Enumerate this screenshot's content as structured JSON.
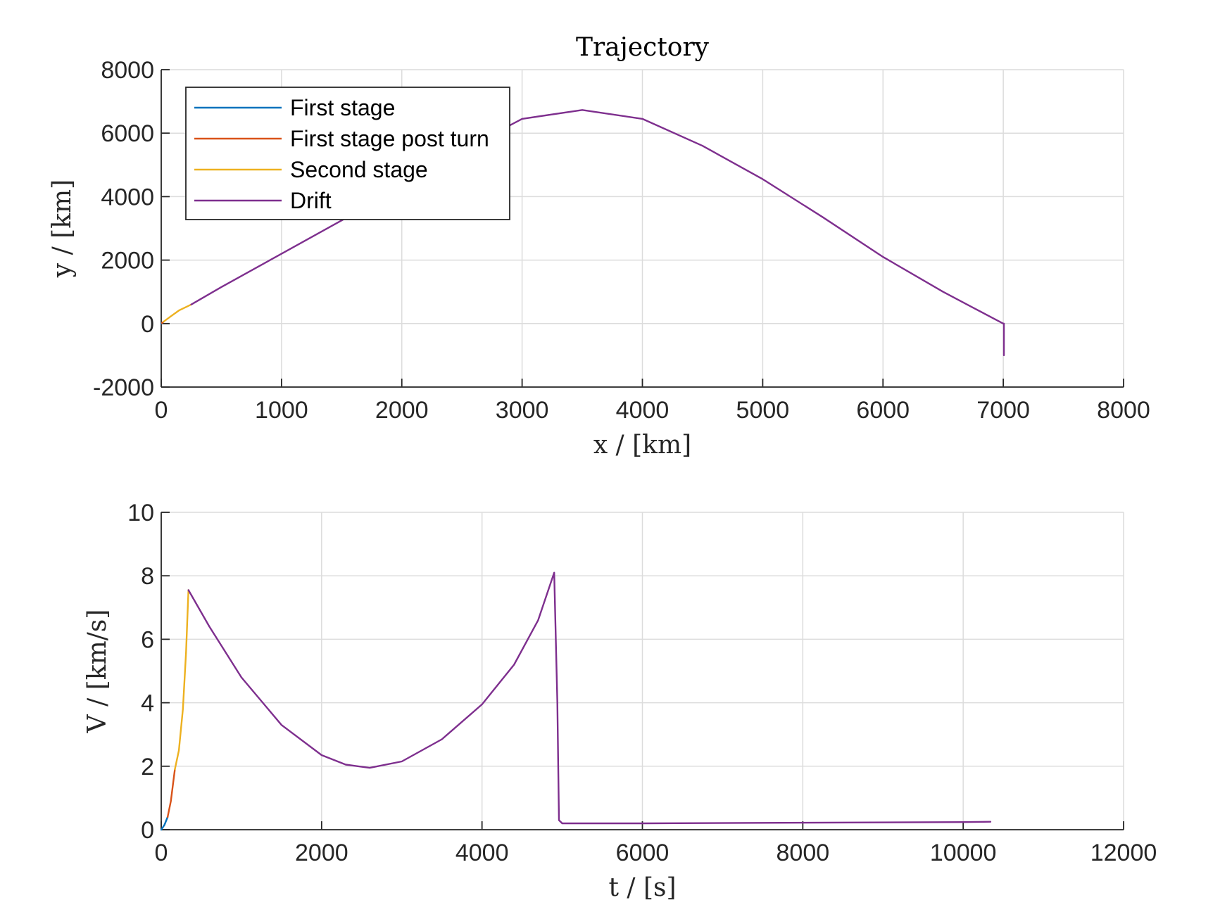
{
  "chart_data": [
    {
      "type": "line",
      "title": "Trajectory",
      "xlabel": "x / [km]",
      "ylabel": "y / [km]",
      "xlim": [
        0,
        8000
      ],
      "ylim": [
        -2000,
        8000
      ],
      "xticks": [
        "0",
        "1000",
        "2000",
        "3000",
        "4000",
        "5000",
        "6000",
        "7000",
        "8000"
      ],
      "yticks": [
        "-2000",
        "0",
        "2000",
        "4000",
        "6000",
        "8000"
      ],
      "grid": true,
      "legend": {
        "placement": "top-left",
        "entries": [
          "First stage",
          "First stage post turn",
          "Second stage",
          "Drift"
        ]
      },
      "series": [
        {
          "name": "First stage",
          "color": "#0072BD",
          "x": [
            0,
            2,
            5
          ],
          "y": [
            0,
            5,
            15
          ]
        },
        {
          "name": "First stage post turn",
          "color": "#D95319",
          "x": [
            5,
            12,
            20
          ],
          "y": [
            15,
            35,
            60
          ]
        },
        {
          "name": "Second stage",
          "color": "#EDB120",
          "x": [
            20,
            80,
            150,
            250
          ],
          "y": [
            60,
            230,
            420,
            600
          ]
        },
        {
          "name": "Drift",
          "color": "#7E2F8E",
          "x": [
            250,
            500,
            1000,
            1500,
            2000,
            2500,
            3000,
            3500,
            4000,
            4500,
            5000,
            5500,
            6000,
            6500,
            6750,
            7000,
            7005,
            7005
          ],
          "y": [
            600,
            1150,
            2200,
            3250,
            4300,
            5450,
            6450,
            6730,
            6450,
            5600,
            4550,
            3350,
            2100,
            1000,
            500,
            0,
            0,
            -1000
          ]
        }
      ]
    },
    {
      "type": "line",
      "title": "",
      "xlabel": "t / [s]",
      "ylabel": "V / [km/s]",
      "xlim": [
        0,
        12000
      ],
      "ylim": [
        0,
        10
      ],
      "xticks": [
        "0",
        "2000",
        "4000",
        "6000",
        "8000",
        "10000",
        "12000"
      ],
      "yticks": [
        "0",
        "2",
        "4",
        "6",
        "8",
        "10"
      ],
      "grid": true,
      "series": [
        {
          "name": "First stage",
          "color": "#0072BD",
          "x": [
            0,
            40,
            80
          ],
          "y": [
            0,
            0.15,
            0.4
          ]
        },
        {
          "name": "First stage post turn",
          "color": "#D95319",
          "x": [
            80,
            120,
            150,
            170
          ],
          "y": [
            0.4,
            0.9,
            1.5,
            1.9
          ]
        },
        {
          "name": "Second stage",
          "color": "#EDB120",
          "x": [
            170,
            220,
            270,
            310,
            340
          ],
          "y": [
            1.9,
            2.5,
            3.8,
            5.6,
            7.55
          ]
        },
        {
          "name": "Drift",
          "color": "#7E2F8E",
          "x": [
            340,
            600,
            1000,
            1500,
            2000,
            2300,
            2600,
            3000,
            3500,
            4000,
            4400,
            4700,
            4900,
            4940,
            4960,
            5000,
            6000,
            8000,
            10000,
            10340
          ],
          "y": [
            7.55,
            6.4,
            4.8,
            3.3,
            2.35,
            2.05,
            1.95,
            2.15,
            2.85,
            3.95,
            5.2,
            6.6,
            8.1,
            4.0,
            0.3,
            0.2,
            0.2,
            0.22,
            0.24,
            0.25
          ]
        }
      ]
    }
  ]
}
